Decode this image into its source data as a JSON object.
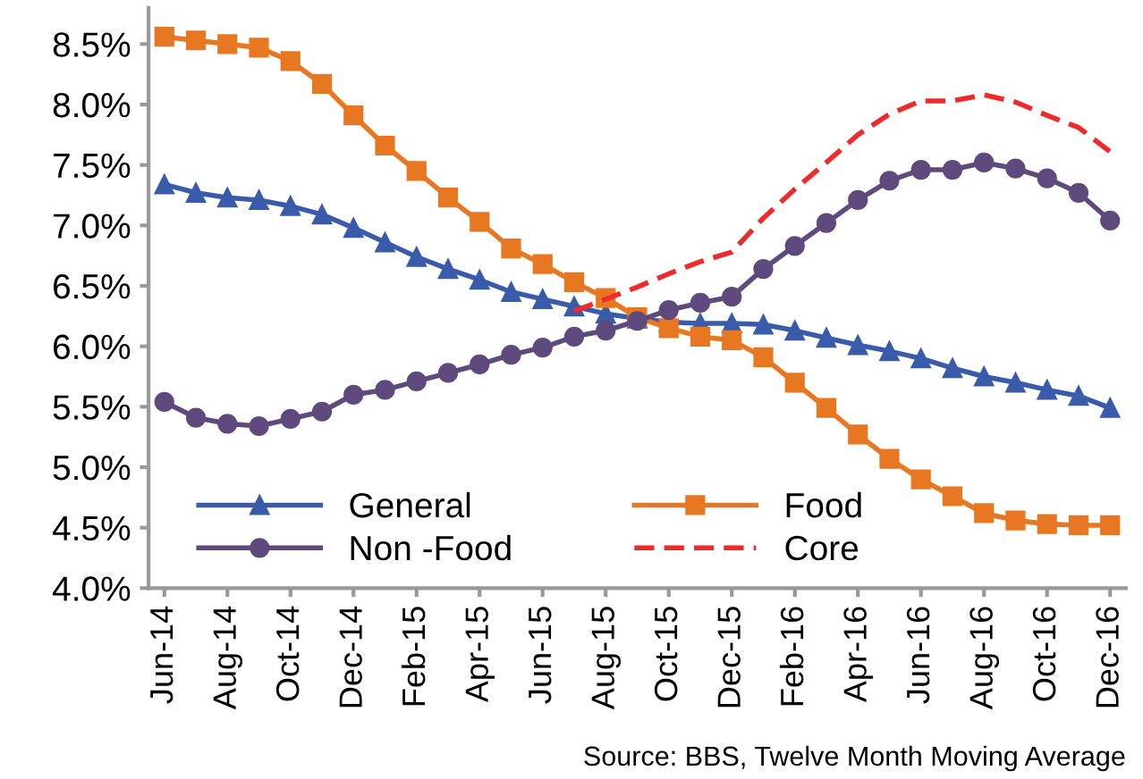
{
  "chart_data": {
    "type": "line",
    "categories": [
      "Jun-14",
      null,
      "Aug-14",
      null,
      "Oct-14",
      null,
      "Dec-14",
      null,
      "Feb-15",
      null,
      "Apr-15",
      null,
      "Jun-15",
      null,
      "Aug-15",
      null,
      "Oct-15",
      null,
      "Dec-15",
      null,
      "Feb-16",
      null,
      "Apr-16",
      null,
      "Jun-16",
      null,
      "Aug-16",
      null,
      "Oct-16",
      null,
      "Dec-16"
    ],
    "series": [
      {
        "name": "General",
        "color": "#3a5ba9",
        "marker": "triangle",
        "line_style": "solid",
        "values": [
          7.34,
          7.27,
          7.23,
          7.21,
          7.16,
          7.09,
          6.98,
          6.86,
          6.74,
          6.64,
          6.55,
          6.45,
          6.39,
          6.33,
          6.27,
          6.23,
          6.2,
          6.19,
          6.19,
          6.18,
          6.13,
          6.07,
          6.01,
          5.96,
          5.9,
          5.82,
          5.75,
          5.7,
          5.64,
          5.59,
          5.49
        ]
      },
      {
        "name": "Food",
        "color": "#e87722",
        "marker": "square",
        "line_style": "solid",
        "values": [
          8.56,
          8.53,
          8.5,
          8.47,
          8.36,
          8.17,
          7.91,
          7.66,
          7.45,
          7.23,
          7.03,
          6.81,
          6.68,
          6.53,
          6.4,
          6.24,
          6.15,
          6.08,
          6.05,
          5.91,
          5.7,
          5.49,
          5.27,
          5.07,
          4.9,
          4.76,
          4.62,
          4.56,
          4.53,
          4.52,
          4.52
        ]
      },
      {
        "name": "Non -Food",
        "color": "#5e4a7c",
        "marker": "circle",
        "line_style": "solid",
        "values": [
          5.54,
          5.41,
          5.36,
          5.34,
          5.4,
          5.46,
          5.6,
          5.64,
          5.71,
          5.78,
          5.85,
          5.93,
          5.99,
          6.08,
          6.13,
          6.21,
          6.3,
          6.36,
          6.41,
          6.64,
          6.83,
          7.02,
          7.21,
          7.37,
          7.46,
          7.46,
          7.52,
          7.47,
          7.39,
          7.27,
          7.04
        ]
      },
      {
        "name": "Core",
        "color": "#ee2a2a",
        "marker": "none",
        "line_style": "dashed",
        "values": [
          null,
          null,
          null,
          null,
          null,
          null,
          null,
          null,
          null,
          null,
          null,
          null,
          null,
          6.29,
          6.39,
          6.49,
          6.6,
          6.7,
          6.78,
          7.06,
          7.3,
          7.52,
          7.75,
          7.92,
          8.03,
          8.03,
          8.08,
          8.02,
          7.91,
          7.81,
          7.61
        ]
      }
    ],
    "ylim": [
      4.0,
      8.8
    ],
    "yticks": [
      {
        "value": 4.0,
        "label": "4.0%"
      },
      {
        "value": 4.5,
        "label": "4.5%"
      },
      {
        "value": 5.0,
        "label": "5.0%"
      },
      {
        "value": 5.5,
        "label": "5.5%"
      },
      {
        "value": 6.0,
        "label": "6.0%"
      },
      {
        "value": 6.5,
        "label": "6.5%"
      },
      {
        "value": 7.0,
        "label": "7.0%"
      },
      {
        "value": 7.5,
        "label": "7.5%"
      },
      {
        "value": 8.0,
        "label": "8.0%"
      },
      {
        "value": 8.5,
        "label": "8.5%"
      }
    ],
    "grid": false,
    "legend": "bottom left",
    "annotations": [
      "Source: BBS, Twelve Month Moving Average"
    ]
  }
}
